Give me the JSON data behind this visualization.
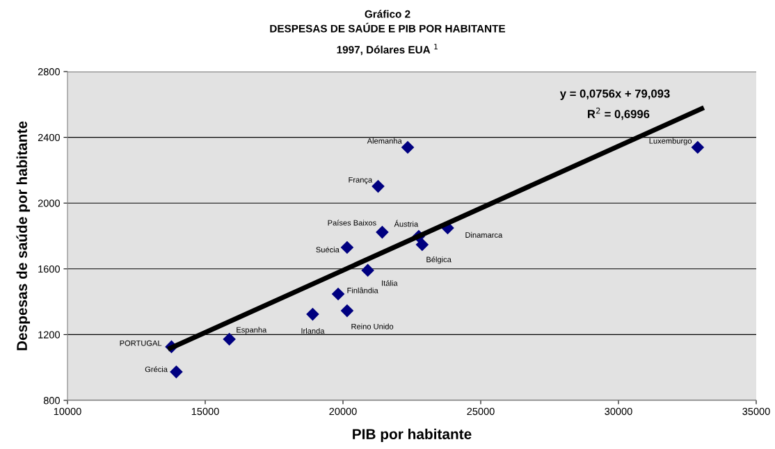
{
  "chart_data": {
    "type": "scatter",
    "title": "Gráfico 2\nDESPESAS DE SAÚDE E PIB POR HABITANTE",
    "subtitle": "1997, Dólares EUA $^{1}$",
    "xlabel": "PIB por habitante",
    "ylabel": "Despesas de saúde por habitante",
    "xlim": [
      10000,
      35000
    ],
    "xticks": [
      10000,
      15000,
      20000,
      25000,
      30000,
      35000
    ],
    "ylim": [
      800,
      2800
    ],
    "yticks": [
      800,
      1200,
      1600,
      2000,
      2400,
      2800
    ],
    "grid": "y",
    "legend": false,
    "series": [
      {
        "color": "#000080",
        "marker": "diamond",
        "x": [
          13775,
          13950,
          15875,
          18900,
          19825,
          20150,
          20150,
          20900,
          21425,
          21275,
          22350,
          22750,
          22875,
          23800,
          32875
        ],
        "values": [
          1126,
          973,
          1172,
          1324,
          1447,
          1345,
          1730,
          1591,
          1823,
          2102,
          2339,
          1798,
          1747,
          1849,
          2339
        ],
        "value_labels": [
          "PORTUGAL",
          "Grécia",
          "Espanha",
          "Irlanda",
          "Finlândia",
          "Reino Unido",
          "Suécia",
          "Itália",
          "Países Baixos",
          "França",
          "Alemanha",
          "Áustria",
          "Bélgica",
          "Dinamarca",
          "Luxemburgo"
        ]
      },
      {
        "type": "line",
        "color": "#000000",
        "x": [
          13650,
          33100
        ],
        "values": [
          1111,
          2581
        ]
      }
    ],
    "annotations": [
      "y = 0,0756x + 79,093",
      "R$^{2}$ = 0,6996"
    ]
  }
}
